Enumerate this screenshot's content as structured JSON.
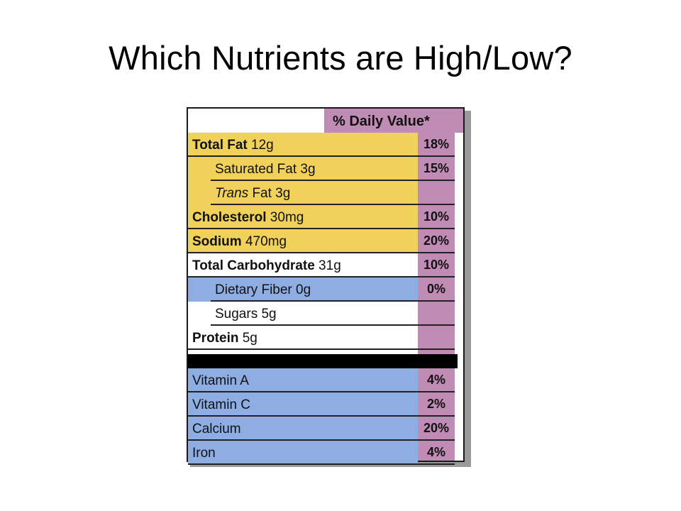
{
  "slide": {
    "title": "Which Nutrients are High/Low?"
  },
  "colors": {
    "yellow": "#f0d25a",
    "blue": "#8eaee3",
    "purple": "#c08bb4",
    "black": "#000000"
  },
  "label": {
    "dv_header": "% Daily Value*",
    "rows": [
      {
        "name": "Total Fat",
        "amount": " 12g",
        "pct": "18%",
        "color": "yellow",
        "indent": false,
        "style": "bold"
      },
      {
        "name": "Saturated Fat",
        "amount": " 3g",
        "pct": "15%",
        "color": "yellow",
        "indent": true,
        "style": "normal"
      },
      {
        "name": "Trans",
        "amount": " Fat 3g",
        "pct": "",
        "color": "yellow",
        "indent": true,
        "style": "italic"
      },
      {
        "name": "Cholesterol",
        "amount": " 30mg",
        "pct": "10%",
        "color": "yellow",
        "indent": false,
        "style": "bold"
      },
      {
        "name": "Sodium",
        "amount": " 470mg",
        "pct": "20%",
        "color": "yellow",
        "indent": false,
        "style": "bold"
      },
      {
        "name": "Total Carbohydrate",
        "amount": " 31g",
        "pct": "10%",
        "color": "white",
        "indent": false,
        "style": "bold"
      },
      {
        "name": "Dietary Fiber",
        "amount": " 0g",
        "pct": "0%",
        "color": "blue",
        "indent": true,
        "style": "normal"
      },
      {
        "name": "Sugars",
        "amount": " 5g",
        "pct": "",
        "color": "white",
        "indent": true,
        "style": "normal"
      },
      {
        "name": "Protein",
        "amount": " 5g",
        "pct": "",
        "color": "white",
        "indent": false,
        "style": "bold"
      }
    ],
    "vitamins": [
      {
        "name": "Vitamin A",
        "pct": "4%",
        "color": "blue"
      },
      {
        "name": "Vitamin C",
        "pct": "2%",
        "color": "blue"
      },
      {
        "name": "Calcium",
        "pct": "20%",
        "color": "blue"
      },
      {
        "name": "Iron",
        "pct": "4%",
        "color": "blue"
      }
    ]
  }
}
